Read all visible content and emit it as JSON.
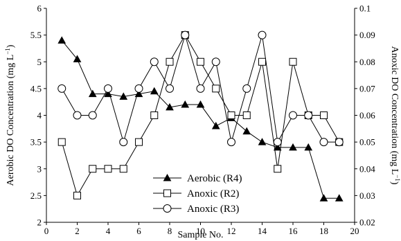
{
  "chart_data": {
    "type": "line",
    "xlabel": "Sample No.",
    "ylabel_left": "Aerobic DO Concentration (mg L",
    "ylabel_left_sup": "−1",
    "ylabel_left_tail": ")",
    "ylabel_right": "Anoxic DO Concentration (mg L",
    "ylabel_right_sup": "−1",
    "ylabel_right_tail": ")",
    "xlim": [
      0,
      20
    ],
    "ylim_left": [
      2,
      6
    ],
    "ylim_right": [
      0.02,
      0.1
    ],
    "x_ticks": [
      "0",
      "2",
      "4",
      "6",
      "8",
      "10",
      "12",
      "14",
      "16",
      "18",
      "20"
    ],
    "y_left_ticks": [
      "2",
      "2.5",
      "3",
      "3.5",
      "4",
      "4.5",
      "5",
      "5.5",
      "6"
    ],
    "y_right_ticks": [
      "0.02",
      "0.03",
      "0.04",
      "0.05",
      "0.06",
      "0.07",
      "0.08",
      "0.09",
      "0.1"
    ],
    "legend_position": "lower-center",
    "series": [
      {
        "name": "Aerobic (R4)",
        "axis": "left",
        "marker": "triangle-filled",
        "x": [
          1,
          2,
          3,
          4,
          5,
          6,
          7,
          8,
          9,
          10,
          11,
          12,
          13,
          14,
          15,
          16,
          17,
          18,
          19
        ],
        "y": [
          5.4,
          5.05,
          4.4,
          4.4,
          4.35,
          4.4,
          4.45,
          4.15,
          4.2,
          4.2,
          3.8,
          3.95,
          3.7,
          3.5,
          3.4,
          3.4,
          3.4,
          2.45,
          2.45
        ]
      },
      {
        "name": "Anoxic (R2)",
        "axis": "right",
        "marker": "square-open",
        "x": [
          1,
          2,
          3,
          4,
          5,
          6,
          7,
          8,
          9,
          10,
          11,
          12,
          13,
          14,
          15,
          16,
          17,
          18,
          19
        ],
        "y": [
          0.05,
          0.03,
          0.04,
          0.04,
          0.04,
          0.05,
          0.06,
          0.08,
          0.09,
          0.08,
          0.07,
          0.06,
          0.06,
          0.08,
          0.04,
          0.08,
          0.06,
          0.06,
          0.05
        ]
      },
      {
        "name": "Anoxic (R3)",
        "axis": "right",
        "marker": "circle-open",
        "x": [
          1,
          2,
          3,
          4,
          5,
          6,
          7,
          8,
          9,
          10,
          11,
          12,
          13,
          14,
          15,
          16,
          17,
          18,
          19
        ],
        "y": [
          0.07,
          0.06,
          0.06,
          0.07,
          0.05,
          0.07,
          0.08,
          0.07,
          0.09,
          0.07,
          0.08,
          0.05,
          0.07,
          0.09,
          0.05,
          0.06,
          0.06,
          0.05,
          0.05
        ]
      }
    ]
  }
}
